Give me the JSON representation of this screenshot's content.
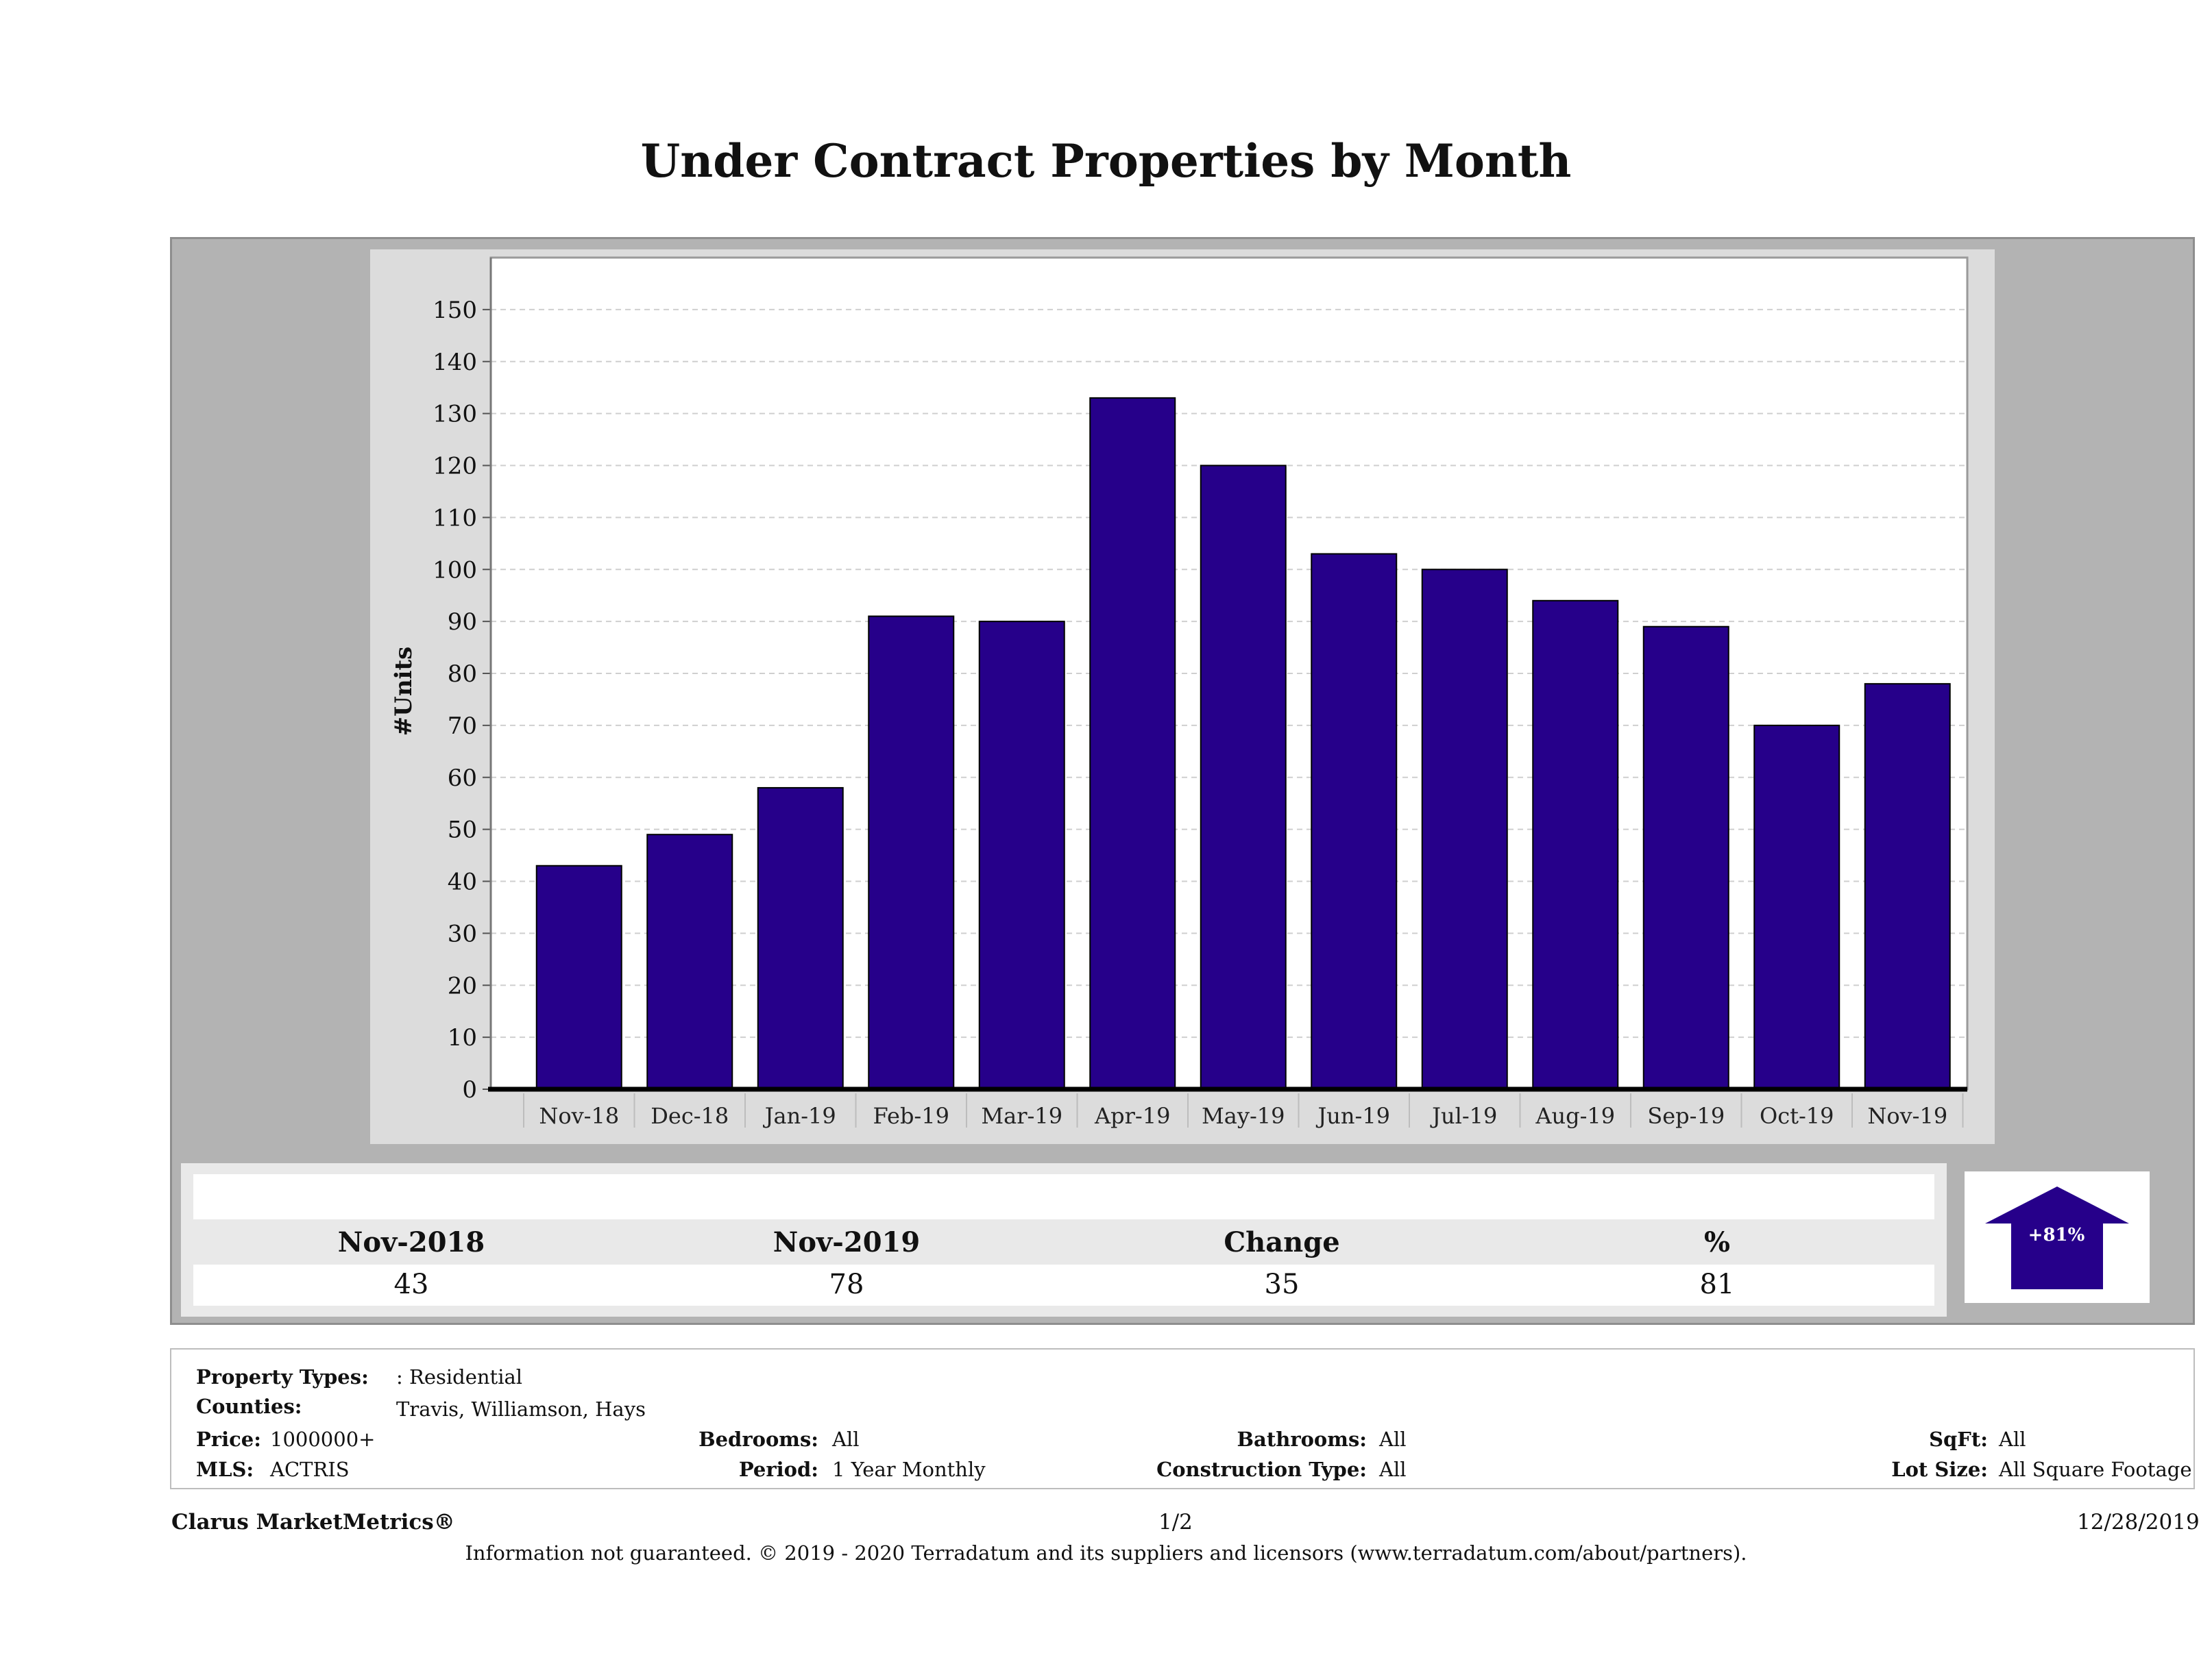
{
  "page": {
    "title": "Under Contract Properties by Month"
  },
  "chart_data": {
    "type": "bar",
    "title": "",
    "xlabel": "",
    "ylabel": "#Units",
    "ylim": [
      0,
      160
    ],
    "yticks": [
      0,
      10,
      20,
      30,
      40,
      50,
      60,
      70,
      80,
      90,
      100,
      110,
      120,
      130,
      140,
      150
    ],
    "categories": [
      "Nov-18",
      "Dec-18",
      "Jan-19",
      "Feb-19",
      "Mar-19",
      "Apr-19",
      "May-19",
      "Jun-19",
      "Jul-19",
      "Aug-19",
      "Sep-19",
      "Oct-19",
      "Nov-19"
    ],
    "values": [
      43,
      49,
      58,
      91,
      90,
      133,
      120,
      103,
      100,
      94,
      89,
      70,
      78
    ],
    "grid": true,
    "bar_color": "#26008a"
  },
  "summary": {
    "headers": [
      "Nov-2018",
      "Nov-2019",
      "Change",
      "%"
    ],
    "values": [
      "43",
      "78",
      "35",
      "81"
    ],
    "badge": "+81%",
    "arrow_color": "#26008a",
    "arrow_icon": "up-arrow-icon"
  },
  "info": {
    "property_types_label": "Property Types:",
    "property_types": ": Residential",
    "counties_label": "Counties:",
    "counties": "Travis, Williamson, Hays",
    "price_label": "Price:",
    "price": "1000000+",
    "mls_label": "MLS:",
    "mls": "ACTRIS",
    "bedrooms_label": "Bedrooms:",
    "bedrooms": "All",
    "period_label": "Period:",
    "period": "1 Year Monthly",
    "bathrooms_label": "Bathrooms:",
    "bathrooms": "All",
    "construction_label": "Construction Type:",
    "construction": "All",
    "sqft_label": "SqFt:",
    "sqft": "All",
    "lotsize_label": "Lot Size:",
    "lotsize": "All Square Footage"
  },
  "footer": {
    "brand": "Clarus MarketMetrics®",
    "page_num": "1/2",
    "date": "12/28/2019",
    "disclaimer": "Information not guaranteed. © 2019 - 2020 Terradatum and its suppliers and licensors (www.terradatum.com/about/partners)."
  }
}
